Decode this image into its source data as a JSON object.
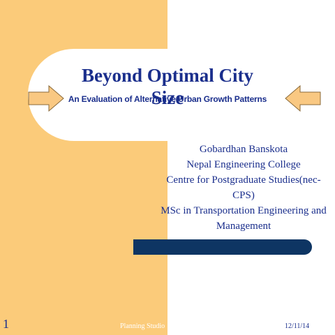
{
  "slide": {
    "title": "Beyond Optimal City Size",
    "subtitle": "An Evaluation of Alternative Urban Growth Patterns",
    "author_lines": [
      "Gobardhan Banskota",
      "Nepal Engineering College",
      "Centre for Postgraduate Studies(nec-CPS)",
      "MSc in Transportation Engineering and Management"
    ],
    "slide_number": "1",
    "footer_left": "Planning Studio",
    "footer_date": "12/11/14"
  },
  "colors": {
    "panel": "#FBCB7A",
    "title_text": "#1a2e8c",
    "accent_bar": "#0e3563",
    "arrow_fill": "#F9C882",
    "arrow_stroke": "#8a6a3a"
  },
  "icons": {
    "left": "arrow-right-icon",
    "right": "arrow-left-icon"
  }
}
